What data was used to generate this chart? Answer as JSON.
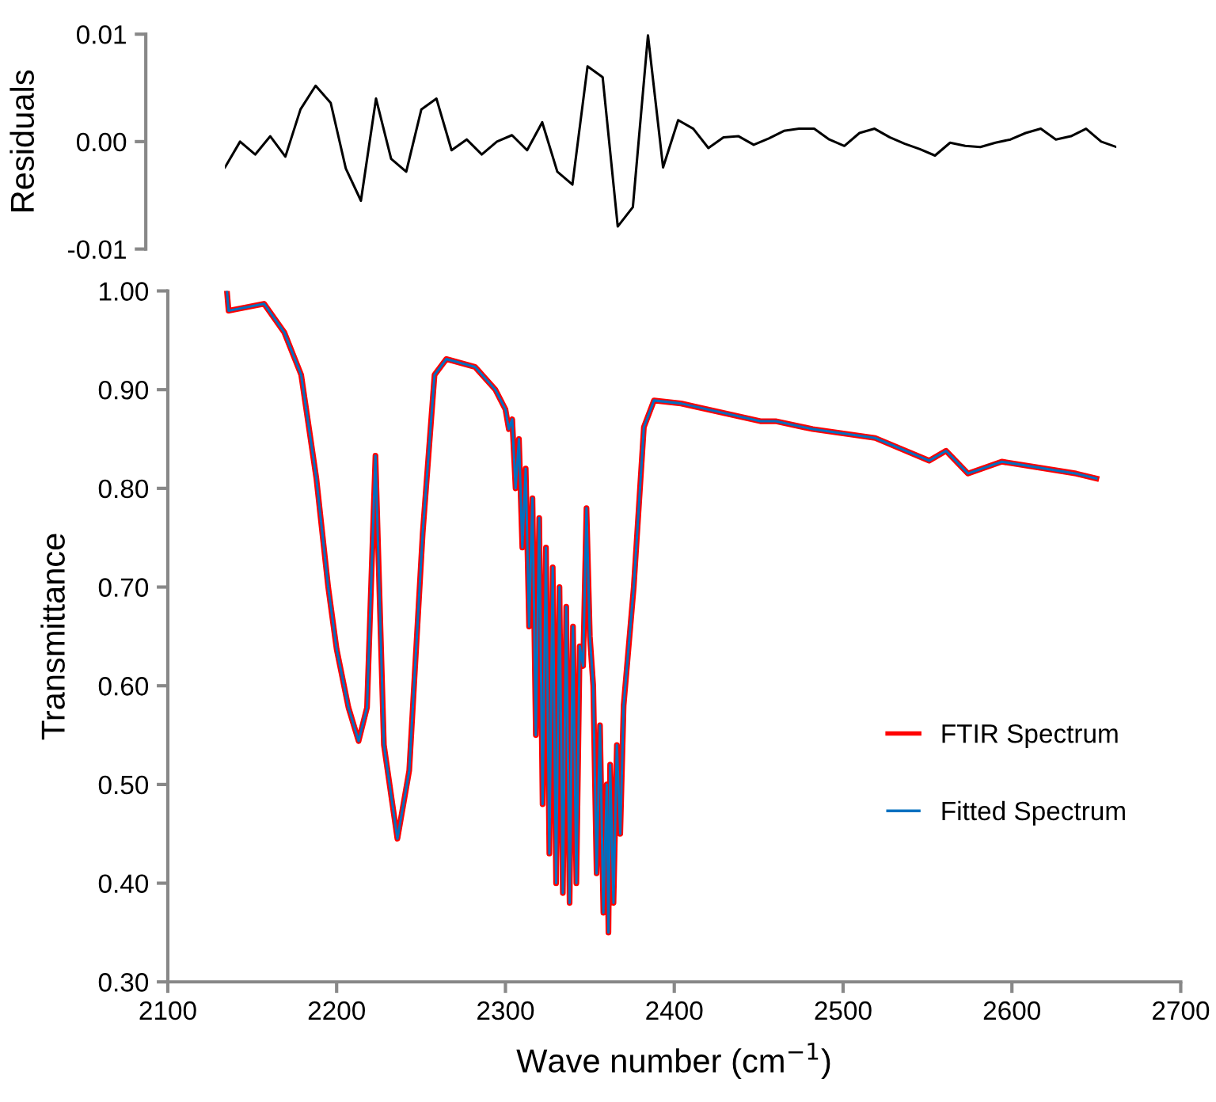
{
  "chart_data": [
    {
      "type": "line",
      "ylabel": "Residuals",
      "ylim": [
        -0.01,
        0.01
      ],
      "yticks": [
        {
          "value": -0.01,
          "label": "-0.01"
        },
        {
          "value": 0,
          "label": "0.00"
        },
        {
          "value": 0.01,
          "label": "0.01"
        }
      ],
      "tick_labels": "y",
      "grid": false,
      "legend": false,
      "categories": [
        null,
        null,
        null,
        null,
        null,
        null,
        null,
        null,
        null,
        null,
        null,
        null,
        null,
        null,
        null,
        null,
        null,
        null,
        null,
        null,
        null,
        null,
        null,
        null,
        null,
        null,
        null,
        null,
        null,
        null,
        null,
        null,
        null,
        null,
        null,
        null,
        null,
        null,
        null,
        null,
        null,
        null,
        null,
        null,
        null,
        null,
        null,
        null,
        null,
        null,
        null,
        null,
        null,
        null,
        null,
        null,
        null,
        null,
        null,
        null
      ],
      "series": [
        {
          "color": "#000000",
          "values": [
            -0.0024,
            0.0,
            -0.0012,
            0.0005,
            -0.0014,
            0.003,
            0.0052,
            0.0036,
            -0.0025,
            -0.0055,
            0.004,
            -0.0016,
            -0.0028,
            0.003,
            0.004,
            -0.0008,
            0.0002,
            -0.0012,
            0.0,
            0.0006,
            -0.0008,
            0.0018,
            -0.0028,
            -0.004,
            0.007,
            0.006,
            -0.0079,
            -0.0061,
            0.0099,
            -0.0024,
            0.002,
            0.0012,
            -0.0006,
            0.0004,
            0.0005,
            -0.0003,
            0.0003,
            0.001,
            0.0012,
            0.0012,
            0.0002,
            -0.0004,
            0.0008,
            0.0012,
            0.0004,
            -0.0002,
            -0.0007,
            -0.0013,
            -0.0001,
            -0.0004,
            -0.0005,
            -0.0001,
            0.0002,
            0.0008,
            0.0012,
            0.0002,
            0.0005,
            0.0012,
            0.0,
            -0.0005
          ]
        }
      ]
    },
    {
      "type": "line",
      "ylabel": "Transmittance",
      "xlabel": "Wave number (cm$^{−1}$)",
      "xlim": [
        2100,
        2700
      ],
      "xticks": [
        2100,
        2200,
        2300,
        2400,
        2500,
        2600,
        2700
      ],
      "ylim": [
        0.3,
        1.0
      ],
      "yticks": [
        {
          "value": 0.3,
          "label": "0.30"
        },
        {
          "value": 0.4,
          "label": "0.40"
        },
        {
          "value": 0.5,
          "label": "0.50"
        },
        {
          "value": 0.6,
          "label": "0.60"
        },
        {
          "value": 0.7,
          "label": "0.70"
        },
        {
          "value": 0.8,
          "label": "0.80"
        },
        {
          "value": 0.9,
          "label": "0.90"
        },
        {
          "value": 1.0,
          "label": "1.00"
        }
      ],
      "grid": false,
      "legend": "right",
      "x": [
        2135,
        2136,
        2157,
        2169,
        2179,
        2188,
        2195,
        2200,
        2207,
        2213,
        2218,
        2223,
        2228,
        2236,
        2243,
        2251,
        2258,
        2265,
        2282,
        2294,
        2300,
        2302,
        2304,
        2306,
        2308,
        2310,
        2312,
        2314,
        2316,
        2318,
        2320,
        2322,
        2324,
        2326,
        2328,
        2330,
        2332,
        2334,
        2336,
        2338,
        2340,
        2342,
        2344,
        2346,
        2348,
        2350,
        2352,
        2354,
        2356,
        2358,
        2360,
        2361,
        2362,
        2364,
        2366,
        2368,
        2370,
        2376,
        2382,
        2388,
        2404,
        2451,
        2460,
        2482,
        2519,
        2551,
        2561,
        2574,
        2594,
        2638,
        2650
      ],
      "series": [
        {
          "name": "FTIR Spectrum",
          "color": "#ff0000",
          "values": [
            1.0,
            0.98,
            0.987,
            0.958,
            0.915,
            0.81,
            0.7,
            0.637,
            0.578,
            0.544,
            0.578,
            0.833,
            0.54,
            0.445,
            0.514,
            0.755,
            0.915,
            0.931,
            0.923,
            0.9,
            0.88,
            0.86,
            0.87,
            0.8,
            0.85,
            0.74,
            0.82,
            0.66,
            0.79,
            0.55,
            0.77,
            0.48,
            0.74,
            0.43,
            0.72,
            0.4,
            0.7,
            0.39,
            0.68,
            0.38,
            0.66,
            0.4,
            0.64,
            0.62,
            0.78,
            0.65,
            0.6,
            0.41,
            0.56,
            0.37,
            0.5,
            0.35,
            0.52,
            0.38,
            0.54,
            0.45,
            0.58,
            0.7,
            0.862,
            0.889,
            0.886,
            0.868,
            0.868,
            0.86,
            0.851,
            0.828,
            0.838,
            0.815,
            0.827,
            0.815,
            0.81
          ]
        },
        {
          "name": "Fitted Spectrum",
          "color": "#0070c0",
          "values": [
            1.0,
            0.98,
            0.987,
            0.958,
            0.915,
            0.81,
            0.7,
            0.637,
            0.578,
            0.544,
            0.578,
            0.833,
            0.54,
            0.445,
            0.514,
            0.755,
            0.915,
            0.931,
            0.923,
            0.9,
            0.88,
            0.86,
            0.87,
            0.8,
            0.85,
            0.74,
            0.82,
            0.66,
            0.79,
            0.55,
            0.77,
            0.48,
            0.74,
            0.43,
            0.72,
            0.4,
            0.7,
            0.39,
            0.68,
            0.38,
            0.66,
            0.4,
            0.64,
            0.62,
            0.78,
            0.65,
            0.6,
            0.41,
            0.56,
            0.37,
            0.5,
            0.35,
            0.52,
            0.38,
            0.54,
            0.45,
            0.58,
            0.7,
            0.862,
            0.889,
            0.886,
            0.868,
            0.868,
            0.86,
            0.851,
            0.828,
            0.838,
            0.815,
            0.827,
            0.815,
            0.81
          ]
        }
      ]
    }
  ]
}
